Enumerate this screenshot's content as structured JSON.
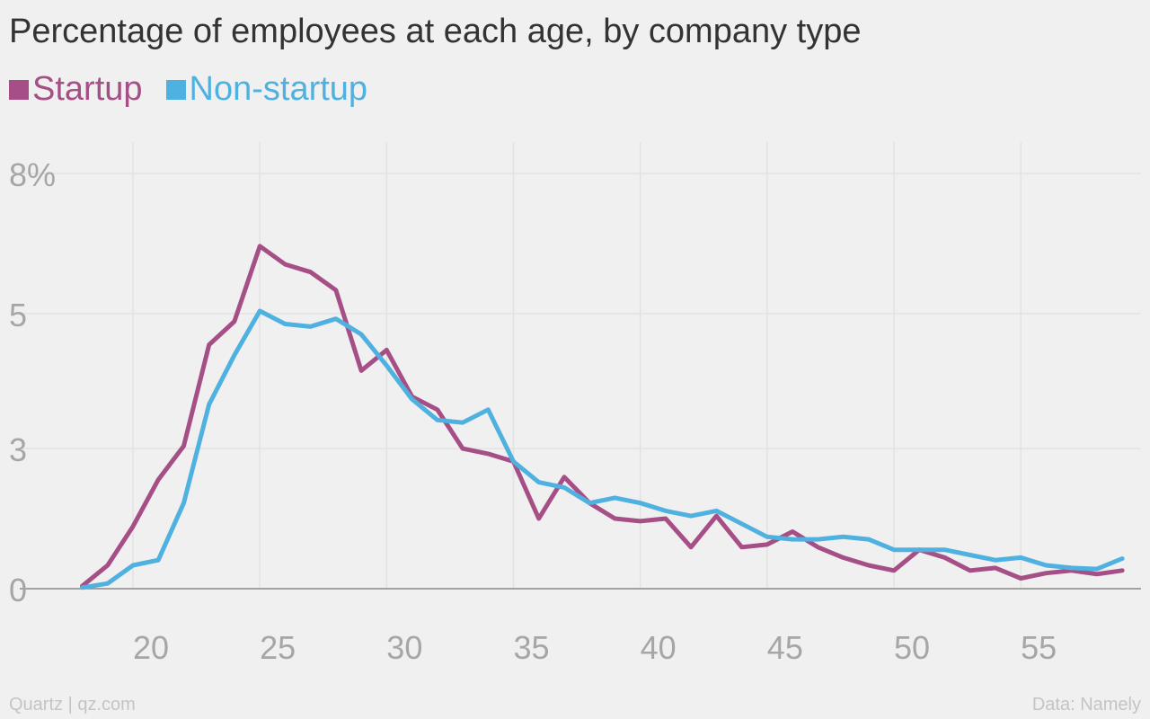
{
  "title": "Percentage of employees at each age, by company type",
  "colors": {
    "background": "#f0f0f0",
    "startup": "#a64f86",
    "nonstartup": "#4fb1e0",
    "grid": "#e2e2e2",
    "axis": "#888888",
    "tick_label": "#a6a6a6"
  },
  "footer": {
    "source_left": "Quartz | qz.com",
    "source_right": "Data: Namely"
  },
  "chart_data": {
    "type": "line",
    "title": "Percentage of employees at each age, by company type",
    "xlabel": "",
    "ylabel": "",
    "xlim": [
      17.5,
      59.3
    ],
    "ylim": [
      0,
      8
    ],
    "grid": true,
    "legend_position": "top-left",
    "x_ticks": [
      20,
      25,
      30,
      35,
      40,
      45,
      50,
      55
    ],
    "x_tick_labels": [
      "20",
      "25",
      "30",
      "35",
      "40",
      "45",
      "50",
      "55"
    ],
    "y_ticks": [
      0,
      2.7,
      5.3,
      8
    ],
    "y_tick_labels": [
      "0",
      "3",
      "5",
      "8%"
    ],
    "x": [
      18,
      19,
      20,
      21,
      22,
      23,
      24,
      25,
      26,
      27,
      28,
      29,
      30,
      31,
      32,
      33,
      34,
      35,
      36,
      37,
      38,
      39,
      40,
      41,
      42,
      43,
      44,
      45,
      46,
      47,
      48,
      49,
      50,
      51,
      52,
      53,
      54,
      55,
      56,
      57,
      58,
      59
    ],
    "series": [
      {
        "name": "Startup",
        "color": "#a64f86",
        "values": [
          0.05,
          0.45,
          1.2,
          2.1,
          2.75,
          4.7,
          5.15,
          6.6,
          6.25,
          6.1,
          5.75,
          4.2,
          4.6,
          3.7,
          3.45,
          2.7,
          2.6,
          2.45,
          1.35,
          2.15,
          1.65,
          1.35,
          1.3,
          1.35,
          0.8,
          1.4,
          0.8,
          0.85,
          1.1,
          0.8,
          0.6,
          0.45,
          0.35,
          0.75,
          0.6,
          0.35,
          0.4,
          0.2,
          0.3,
          0.35,
          0.28,
          0.35
        ]
      },
      {
        "name": "Non-startup",
        "color": "#4fb1e0",
        "values": [
          0.02,
          0.1,
          0.45,
          0.55,
          1.65,
          3.55,
          4.5,
          5.35,
          5.1,
          5.05,
          5.2,
          4.9,
          4.3,
          3.65,
          3.25,
          3.2,
          3.45,
          2.45,
          2.05,
          1.95,
          1.65,
          1.75,
          1.65,
          1.5,
          1.4,
          1.5,
          1.25,
          1.0,
          0.95,
          0.95,
          1.0,
          0.95,
          0.75,
          0.75,
          0.75,
          0.65,
          0.55,
          0.6,
          0.45,
          0.4,
          0.38,
          0.58
        ]
      }
    ]
  }
}
